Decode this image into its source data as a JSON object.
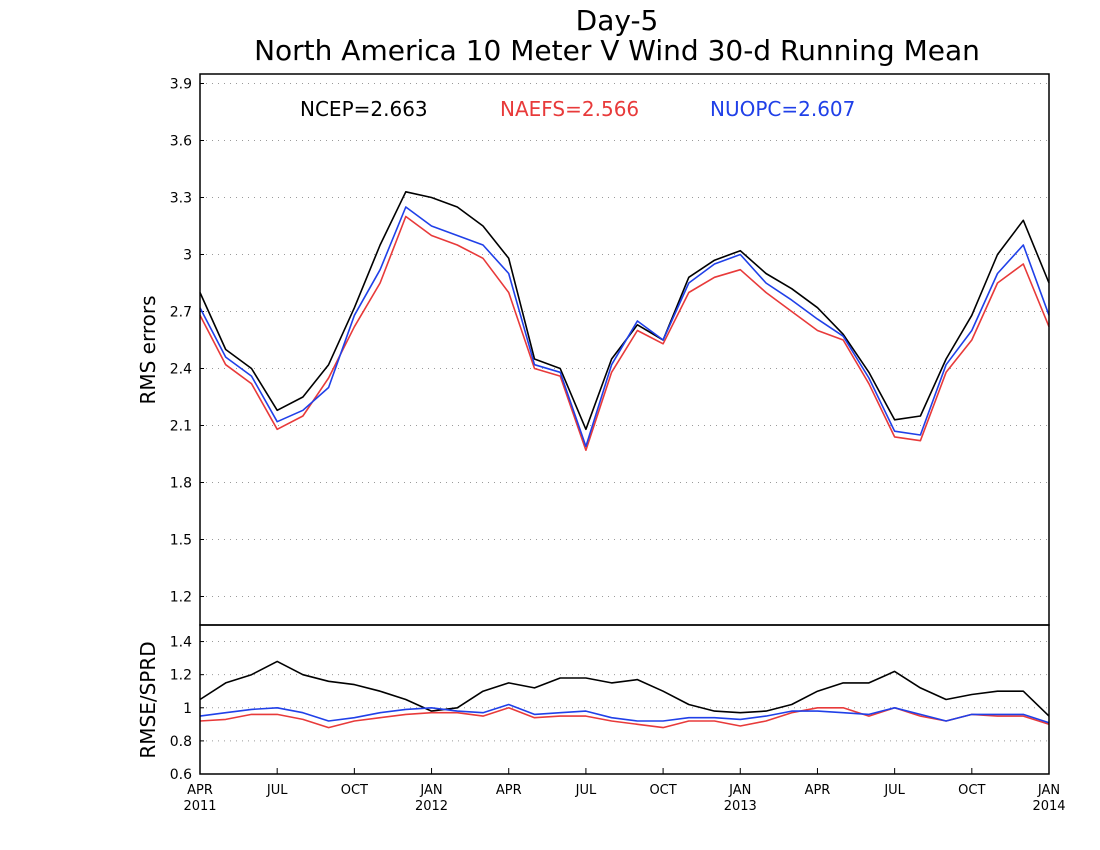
{
  "chart_data": [
    {
      "type": "line",
      "title": "Day-5",
      "subtitle": "North America 10 Meter V Wind 30-d Running Mean",
      "ylabel": "RMS errors",
      "ylim": [
        1.05,
        3.95
      ],
      "yticks": [
        1.2,
        1.5,
        1.8,
        2.1,
        2.4,
        2.7,
        3.0,
        3.3,
        3.6,
        3.9
      ],
      "ytick_labels": [
        "1.2",
        "1.5",
        "1.8",
        "2.1",
        "2.4",
        "2.7",
        "3",
        "3.3",
        "3.6",
        "3.9"
      ],
      "grid": "dotted horizontal",
      "x": [
        "2011-04",
        "2011-05",
        "2011-06",
        "2011-07",
        "2011-08",
        "2011-09",
        "2011-10",
        "2011-11",
        "2011-12",
        "2012-01",
        "2012-02",
        "2012-03",
        "2012-04",
        "2012-05",
        "2012-06",
        "2012-07",
        "2012-08",
        "2012-09",
        "2012-10",
        "2012-11",
        "2012-12",
        "2013-01",
        "2013-02",
        "2013-03",
        "2013-04",
        "2013-05",
        "2013-06",
        "2013-07",
        "2013-08",
        "2013-09",
        "2013-10",
        "2013-11",
        "2013-12",
        "2014-01"
      ],
      "series": [
        {
          "name": "NCEP",
          "mean_label": "NCEP=2.663",
          "color": "#000000",
          "values": [
            2.8,
            2.5,
            2.4,
            2.18,
            2.25,
            2.42,
            2.72,
            3.05,
            3.33,
            3.3,
            3.25,
            3.15,
            2.98,
            2.45,
            2.4,
            2.08,
            2.45,
            2.63,
            2.55,
            2.88,
            2.97,
            3.02,
            2.9,
            2.82,
            2.72,
            2.58,
            2.38,
            2.13,
            2.15,
            2.45,
            2.68,
            3.0,
            3.18,
            2.85
          ]
        },
        {
          "name": "NAEFS",
          "mean_label": "NAEFS=2.566",
          "color": "#e83a3a",
          "values": [
            2.68,
            2.42,
            2.32,
            2.08,
            2.15,
            2.35,
            2.62,
            2.85,
            3.2,
            3.1,
            3.05,
            2.98,
            2.8,
            2.4,
            2.36,
            1.97,
            2.38,
            2.6,
            2.53,
            2.8,
            2.88,
            2.92,
            2.8,
            2.7,
            2.6,
            2.55,
            2.32,
            2.04,
            2.02,
            2.38,
            2.55,
            2.85,
            2.95,
            2.62
          ]
        },
        {
          "name": "NUOPC",
          "mean_label": "NUOPC=2.607",
          "color": "#2040e8",
          "values": [
            2.72,
            2.46,
            2.36,
            2.12,
            2.18,
            2.3,
            2.68,
            2.92,
            3.25,
            3.15,
            3.1,
            3.05,
            2.9,
            2.42,
            2.38,
            1.99,
            2.42,
            2.65,
            2.55,
            2.85,
            2.95,
            3.0,
            2.85,
            2.76,
            2.66,
            2.57,
            2.35,
            2.07,
            2.05,
            2.42,
            2.6,
            2.9,
            3.05,
            2.68
          ]
        }
      ]
    },
    {
      "type": "line",
      "ylabel": "RMSE/SPRD",
      "ylim": [
        0.6,
        1.5
      ],
      "yticks": [
        0.6,
        0.8,
        1.0,
        1.2,
        1.4
      ],
      "ytick_labels": [
        "0.6",
        "0.8",
        "1",
        "1.2",
        "1.4"
      ],
      "grid": "dotted horizontal",
      "x": [
        "2011-04",
        "2011-05",
        "2011-06",
        "2011-07",
        "2011-08",
        "2011-09",
        "2011-10",
        "2011-11",
        "2011-12",
        "2012-01",
        "2012-02",
        "2012-03",
        "2012-04",
        "2012-05",
        "2012-06",
        "2012-07",
        "2012-08",
        "2012-09",
        "2012-10",
        "2012-11",
        "2012-12",
        "2013-01",
        "2013-02",
        "2013-03",
        "2013-04",
        "2013-05",
        "2013-06",
        "2013-07",
        "2013-08",
        "2013-09",
        "2013-10",
        "2013-11",
        "2013-12",
        "2014-01"
      ],
      "xtick_labels": [
        {
          "month": "APR",
          "year": "2011"
        },
        {
          "month": "JUL",
          "year": ""
        },
        {
          "month": "OCT",
          "year": ""
        },
        {
          "month": "JAN",
          "year": "2012"
        },
        {
          "month": "APR",
          "year": ""
        },
        {
          "month": "JUL",
          "year": ""
        },
        {
          "month": "OCT",
          "year": ""
        },
        {
          "month": "JAN",
          "year": "2013"
        },
        {
          "month": "APR",
          "year": ""
        },
        {
          "month": "JUL",
          "year": ""
        },
        {
          "month": "OCT",
          "year": ""
        },
        {
          "month": "JAN",
          "year": "2014"
        }
      ],
      "series": [
        {
          "name": "NCEP",
          "color": "#000000",
          "values": [
            1.05,
            1.15,
            1.2,
            1.28,
            1.2,
            1.16,
            1.14,
            1.1,
            1.05,
            0.98,
            1.0,
            1.1,
            1.15,
            1.12,
            1.18,
            1.18,
            1.15,
            1.17,
            1.1,
            1.02,
            0.98,
            0.97,
            0.98,
            1.02,
            1.1,
            1.15,
            1.15,
            1.22,
            1.12,
            1.05,
            1.08,
            1.1,
            1.1,
            0.95
          ]
        },
        {
          "name": "NAEFS",
          "color": "#e83a3a",
          "values": [
            0.92,
            0.93,
            0.96,
            0.96,
            0.93,
            0.88,
            0.92,
            0.94,
            0.96,
            0.97,
            0.97,
            0.95,
            1.0,
            0.94,
            0.95,
            0.95,
            0.92,
            0.9,
            0.88,
            0.92,
            0.92,
            0.89,
            0.92,
            0.97,
            1.0,
            1.0,
            0.95,
            1.0,
            0.95,
            0.92,
            0.96,
            0.95,
            0.95,
            0.9
          ]
        },
        {
          "name": "NUOPC",
          "color": "#2040e8",
          "values": [
            0.95,
            0.97,
            0.99,
            1.0,
            0.97,
            0.92,
            0.94,
            0.97,
            0.99,
            1.0,
            0.98,
            0.97,
            1.02,
            0.96,
            0.97,
            0.98,
            0.94,
            0.92,
            0.92,
            0.94,
            0.94,
            0.93,
            0.95,
            0.98,
            0.98,
            0.97,
            0.96,
            1.0,
            0.96,
            0.92,
            0.96,
            0.96,
            0.96,
            0.91
          ]
        }
      ]
    }
  ]
}
